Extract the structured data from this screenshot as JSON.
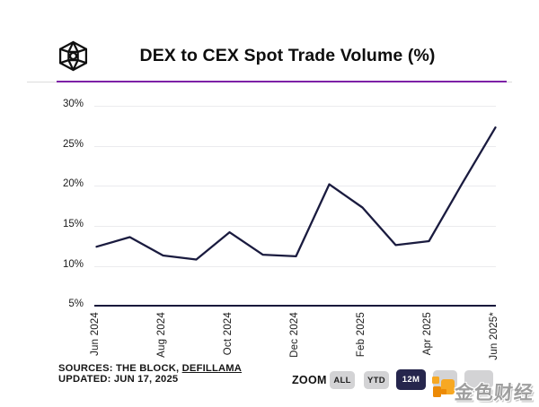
{
  "header": {
    "title": "DEX to CEX Spot Trade Volume (%)",
    "logo_name": "the-block-cube-logo"
  },
  "theme": {
    "accent_purple": "#7d20a6",
    "line_color": "#1a1b3f",
    "active_button_bg": "#26264d",
    "button_bg": "#d3d3d5",
    "grid_color": "#ebebee",
    "axis_color": "#18183b",
    "watermark_orange_light": "#f7a823",
    "watermark_orange_dark": "#ec8a06",
    "watermark_text_color": "#9e9e9e"
  },
  "chart_data": {
    "type": "line",
    "title": "DEX to CEX Spot Trade Volume (%)",
    "x": [
      "Jun 2024",
      "Jul 2024",
      "Aug 2024",
      "Sep 2024",
      "Oct 2024",
      "Nov 2024",
      "Dec 2024",
      "Jan 2025",
      "Feb 2025",
      "Mar 2025",
      "Apr 2025",
      "May 2025",
      "Jun 2025*"
    ],
    "values": [
      12.4,
      13.6,
      11.3,
      10.8,
      14.2,
      11.4,
      11.2,
      20.2,
      17.3,
      12.6,
      13.1,
      20.3,
      27.3
    ],
    "xlabel": "",
    "ylabel": "",
    "ylim": [
      5,
      30
    ],
    "y_ticks": [
      "30%",
      "25%",
      "20%",
      "15%",
      "10%",
      "5%"
    ],
    "x_tick_labels_shown": [
      "Jun 2024",
      "Aug 2024",
      "Oct 2024",
      "Dec 2024",
      "Feb 2025",
      "Apr 2025",
      "Jun 2025*"
    ],
    "grid": "horizontal",
    "legend": "none"
  },
  "footer": {
    "sources_prefix": "SOURCES: THE BLOCK,",
    "sources_link": "DEFILLAMA",
    "updated": "UPDATED: JUN 17, 2025",
    "zoom_label": "ZOOM",
    "zoom_buttons": [
      {
        "label": "ALL",
        "active": false,
        "obscured": false
      },
      {
        "label": "YTD",
        "active": false,
        "obscured": false
      },
      {
        "label": "12M",
        "active": true,
        "obscured": false
      },
      {
        "label": "",
        "active": false,
        "obscured": true
      },
      {
        "label": "",
        "active": false,
        "obscured": true
      }
    ],
    "watermark_text": "金色财经"
  }
}
